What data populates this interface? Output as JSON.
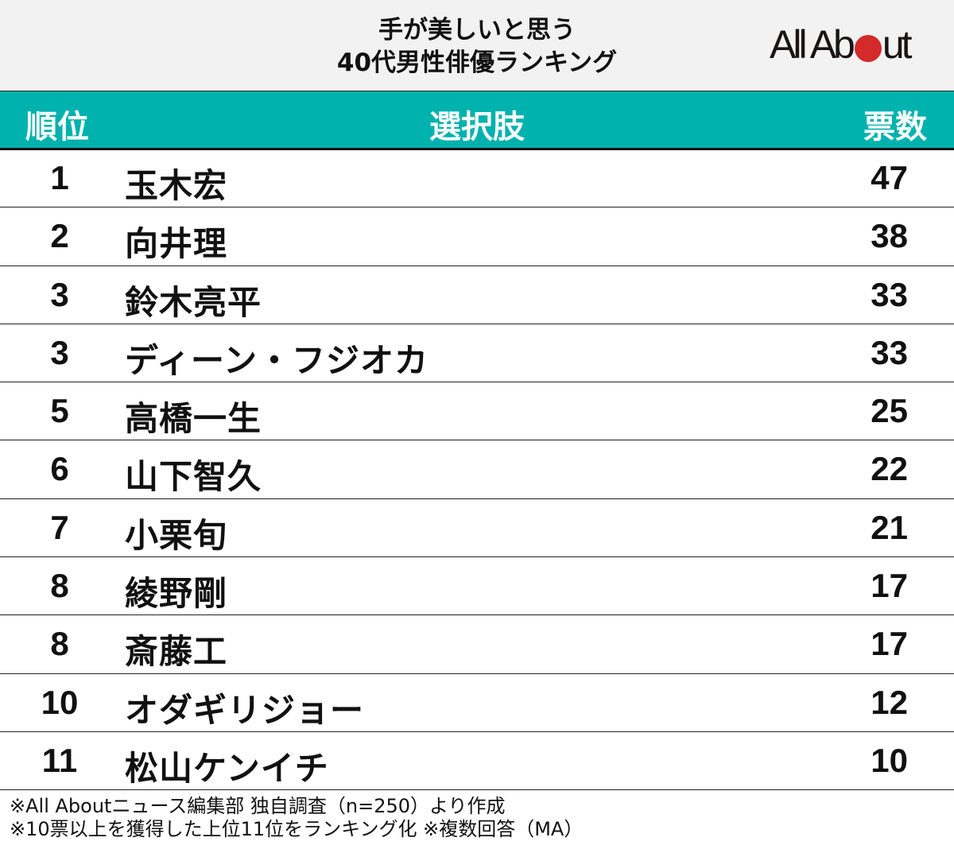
{
  "title": {
    "line1": "手が美しいと思う",
    "line2": "40代男性俳優ランキング"
  },
  "logo": {
    "text_before": "All Ab",
    "text_after": "ut",
    "dot_color": "#d32a2a",
    "name": "All About"
  },
  "colors": {
    "header_bg": "#00b2ae",
    "title_bg": "#f2f2f2",
    "logo_accent": "#d32a2a"
  },
  "table": {
    "headers": {
      "rank": "順位",
      "name": "選択肢",
      "votes": "票数"
    },
    "rows": [
      {
        "rank": "1",
        "name": "玉木宏",
        "votes": "47"
      },
      {
        "rank": "2",
        "name": "向井理",
        "votes": "38"
      },
      {
        "rank": "3",
        "name": "鈴木亮平",
        "votes": "33"
      },
      {
        "rank": "3",
        "name": "ディーン・フジオカ",
        "votes": "33"
      },
      {
        "rank": "5",
        "name": "高橋一生",
        "votes": "25"
      },
      {
        "rank": "6",
        "name": "山下智久",
        "votes": "22"
      },
      {
        "rank": "7",
        "name": "小栗旬",
        "votes": "21"
      },
      {
        "rank": "8",
        "name": "綾野剛",
        "votes": "17"
      },
      {
        "rank": "8",
        "name": "斎藤工",
        "votes": "17"
      },
      {
        "rank": "10",
        "name": "オダギリジョー",
        "votes": "12"
      },
      {
        "rank": "11",
        "name": "松山ケンイチ",
        "votes": "10"
      }
    ]
  },
  "notes": {
    "line1": "※All Aboutニュース編集部 独自調査（n=250）より作成",
    "line2": "※10票以上を獲得した上位11位をランキング化 ※複数回答（MA）"
  },
  "chart_data": {
    "type": "table",
    "title": "手が美しいと思う40代男性俳優ランキング",
    "columns": [
      "順位",
      "選択肢",
      "票数"
    ],
    "categories": [
      "玉木宏",
      "向井理",
      "鈴木亮平",
      "ディーン・フジオカ",
      "高橋一生",
      "山下智久",
      "小栗旬",
      "綾野剛",
      "斎藤工",
      "オダギリジョー",
      "松山ケンイチ"
    ],
    "ranks": [
      1,
      2,
      3,
      3,
      5,
      6,
      7,
      8,
      8,
      10,
      11
    ],
    "values": [
      47,
      38,
      33,
      33,
      25,
      22,
      21,
      17,
      17,
      12,
      10
    ],
    "annotations": [
      "※All Aboutニュース編集部 独自調査（n=250）より作成",
      "※10票以上を獲得した上位11位をランキング化 ※複数回答（MA）"
    ]
  }
}
